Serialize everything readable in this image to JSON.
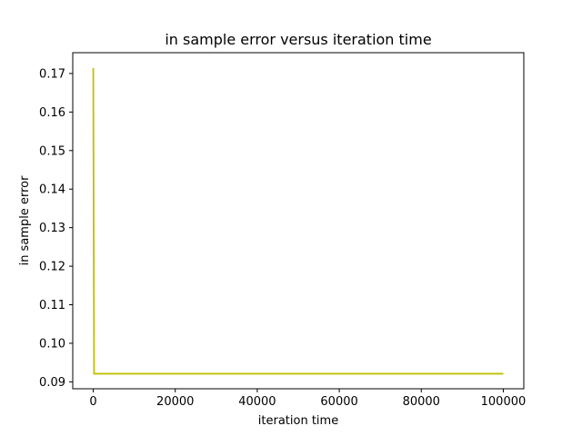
{
  "chart_data": {
    "type": "line",
    "title": "in sample error versus iteration time",
    "xlabel": "iteration time",
    "ylabel": "in sample error",
    "xlim": [
      -5000,
      105000
    ],
    "ylim": [
      0.0882,
      0.1754
    ],
    "x_ticks": [
      0,
      20000,
      40000,
      60000,
      80000,
      100000
    ],
    "x_tick_labels": [
      "0",
      "20000",
      "40000",
      "60000",
      "80000",
      "100000"
    ],
    "y_ticks": [
      0.09,
      0.1,
      0.11,
      0.12,
      0.13,
      0.14,
      0.15,
      0.16,
      0.17
    ],
    "y_tick_labels": [
      "0.09",
      "0.10",
      "0.11",
      "0.12",
      "0.13",
      "0.14",
      "0.15",
      "0.16",
      "0.17"
    ],
    "grid": false,
    "series": [
      {
        "color": "#bfbf00",
        "x": [
          0,
          200,
          100000
        ],
        "y": [
          0.1714,
          0.0921,
          0.0921
        ]
      }
    ]
  }
}
